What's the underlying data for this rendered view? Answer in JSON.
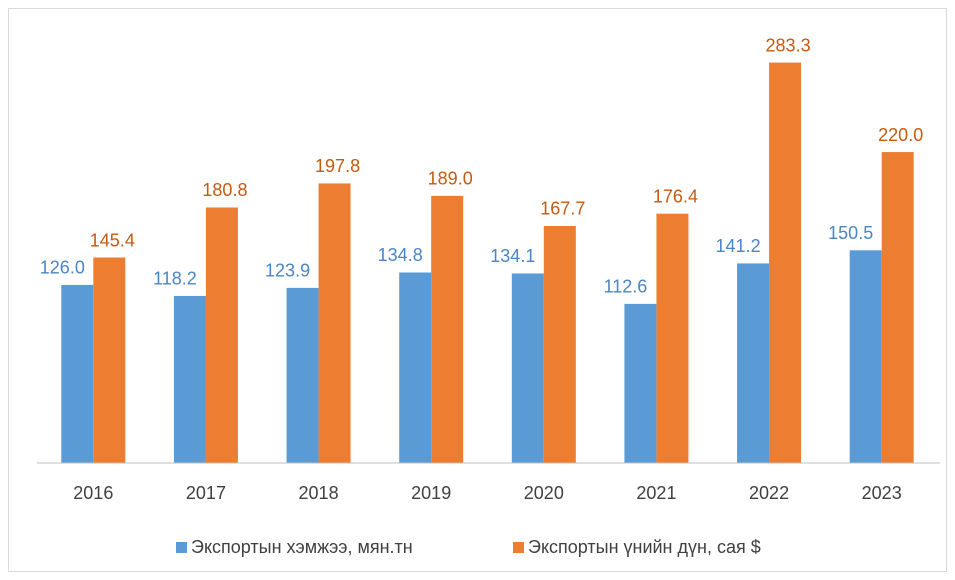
{
  "chart_data": {
    "type": "bar",
    "categories": [
      "2016",
      "2017",
      "2018",
      "2019",
      "2020",
      "2021",
      "2022",
      "2023"
    ],
    "series": [
      {
        "name": "Экспортын хэмжээ, мян.тн",
        "color": "#5b9bd5",
        "label_color": "#4a86c5",
        "values": [
          126.0,
          118.2,
          123.9,
          134.8,
          134.1,
          112.6,
          141.2,
          150.5
        ],
        "value_labels": [
          "126.0",
          "118.2",
          "123.9",
          "134.8",
          "134.1",
          "112.6",
          "141.2",
          "150.5"
        ]
      },
      {
        "name": "Экспортын үнийн дүн, сая $",
        "color": "#ed7d31",
        "label_color": "#c55a11",
        "values": [
          145.4,
          180.8,
          197.8,
          189.0,
          167.7,
          176.4,
          283.3,
          220.0
        ],
        "value_labels": [
          "145.4",
          "180.8",
          "197.8",
          "189.0",
          "167.7",
          "176.4",
          "283.3",
          "220.0"
        ]
      }
    ],
    "ylim": [
      0,
      300
    ],
    "legend": "bottom"
  }
}
